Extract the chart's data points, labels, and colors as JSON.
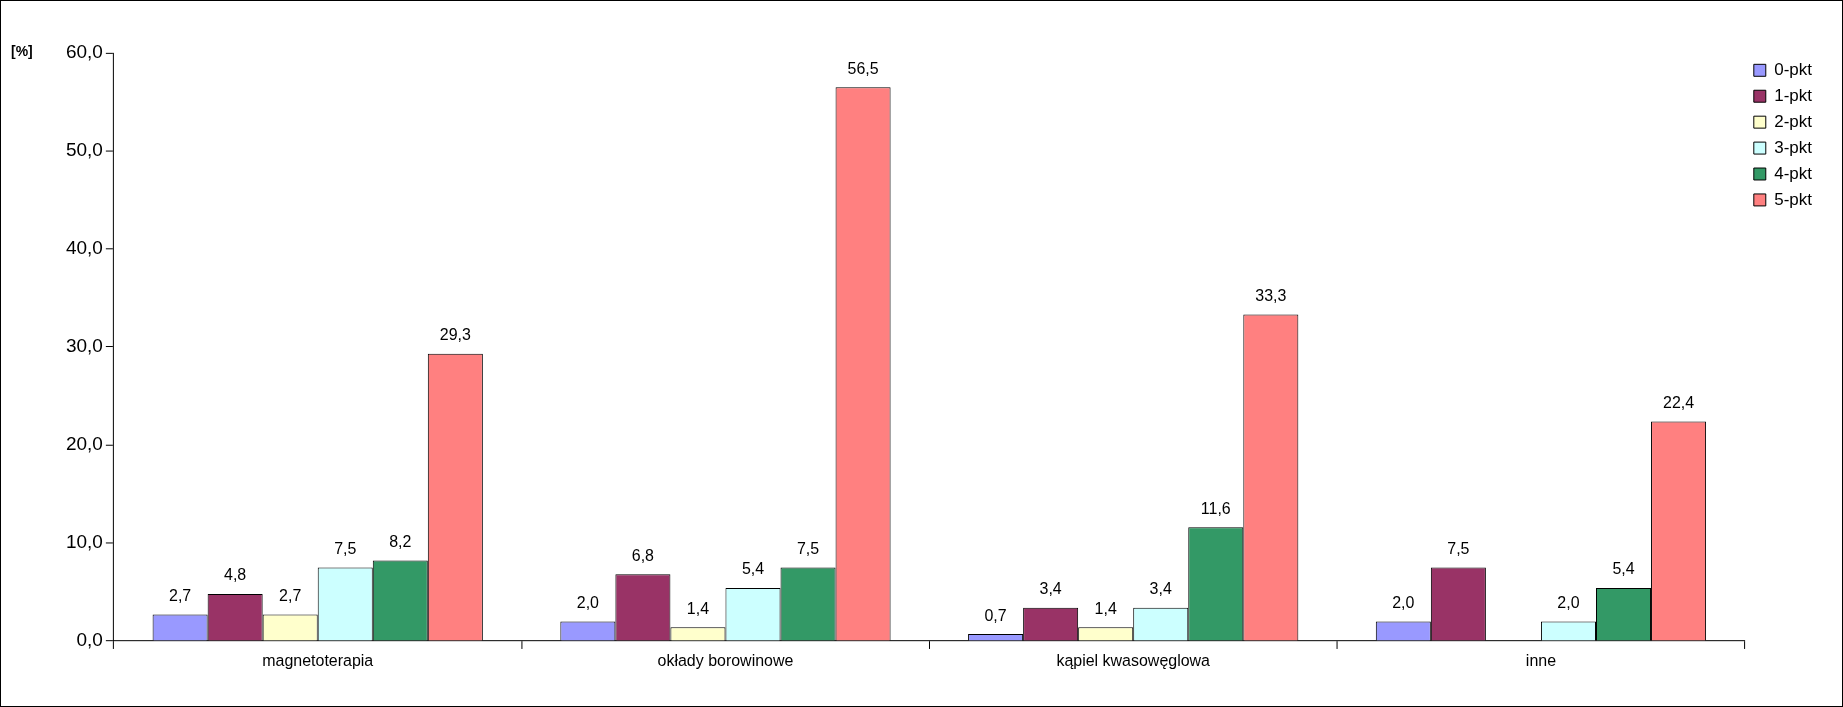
{
  "chart_data": {
    "type": "bar",
    "ylabel": "[%]",
    "categories": [
      "magnetoterapia",
      "okłady borowinowe",
      "kąpiel kwasowęglowa",
      "inne"
    ],
    "series": [
      {
        "name": "0-pkt",
        "color": "#9999ff",
        "values": [
          2.7,
          2.0,
          0.7,
          2.0
        ],
        "value_labels": [
          "2,7",
          "2,0",
          "0,7",
          "2,0"
        ]
      },
      {
        "name": "1-pkt",
        "color": "#993366",
        "values": [
          4.8,
          6.8,
          3.4,
          7.5
        ],
        "value_labels": [
          "4,8",
          "6,8",
          "3,4",
          "7,5"
        ]
      },
      {
        "name": "2-pkt",
        "color": "#ffffcc",
        "values": [
          2.7,
          1.4,
          1.4,
          null
        ],
        "value_labels": [
          "2,7",
          "1,4",
          "1,4",
          null
        ]
      },
      {
        "name": "3-pkt",
        "color": "#ccffff",
        "values": [
          7.5,
          5.4,
          3.4,
          2.0
        ],
        "value_labels": [
          "7,5",
          "5,4",
          "3,4",
          "2,0"
        ]
      },
      {
        "name": "4-pkt",
        "color": "#339966",
        "values": [
          8.2,
          7.5,
          11.6,
          5.4
        ],
        "value_labels": [
          "8,2",
          "7,5",
          "11,6",
          "5,4"
        ]
      },
      {
        "name": "5-pkt",
        "color": "#ff8080",
        "values": [
          29.3,
          56.5,
          33.3,
          22.4
        ],
        "value_labels": [
          "29,3",
          "56,5",
          "33,3",
          "22,4"
        ]
      }
    ],
    "ylim": [
      0,
      60
    ],
    "yticks": [
      {
        "value": 0,
        "label": "0,0"
      },
      {
        "value": 10,
        "label": "10,0"
      },
      {
        "value": 20,
        "label": "20,0"
      },
      {
        "value": 30,
        "label": "30,0"
      },
      {
        "value": 40,
        "label": "40,0"
      },
      {
        "value": 50,
        "label": "50,0"
      },
      {
        "value": 60,
        "label": "60,0"
      }
    ],
    "grid": false,
    "legend": "top right"
  }
}
